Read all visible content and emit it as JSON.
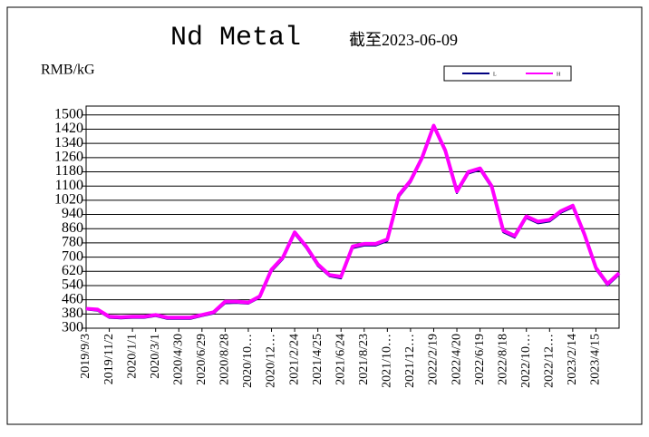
{
  "chart_data": {
    "type": "line",
    "title": "Nd Metal",
    "subtitle": "截至2023-06-09",
    "y_label": "RMB/kG",
    "categories": [
      "2019/9/3",
      null,
      "2019/11/2",
      null,
      "2020/1/1",
      null,
      "2020/3/1",
      null,
      "2020/4/30",
      null,
      "2020/6/29",
      null,
      "2020/8/28",
      null,
      "2020/10…",
      null,
      "2020/12…",
      null,
      "2021/2/24",
      null,
      "2021/4/25",
      null,
      "2021/6/24",
      null,
      "2021/8/23",
      null,
      "2021/10…",
      null,
      "2021/12…",
      null,
      "2022/2/19",
      null,
      "2022/4/20",
      null,
      "2022/6/19",
      null,
      "2022/8/18",
      null,
      "2022/10…",
      null,
      "2022/12…",
      null,
      "2023/2/14",
      null,
      "2023/4/15",
      null,
      null
    ],
    "series": [
      {
        "name": "L",
        "color": "#000080",
        "values": [
          405,
          398,
          358,
          355,
          358,
          358,
          368,
          352,
          352,
          352,
          368,
          382,
          440,
          442,
          438,
          472,
          620,
          690,
          830,
          750,
          650,
          592,
          580,
          750,
          765,
          765,
          790,
          1040,
          1120,
          1250,
          1430,
          1290,
          1060,
          1170,
          1190,
          1090,
          840,
          810,
          920,
          890,
          900,
          950,
          980,
          820,
          630,
          540,
          600
        ]
      },
      {
        "name": "H",
        "color": "#ff00ff",
        "values": [
          410,
          405,
          365,
          362,
          365,
          365,
          375,
          360,
          360,
          360,
          375,
          390,
          450,
          450,
          445,
          480,
          630,
          700,
          840,
          760,
          660,
          600,
          590,
          760,
          775,
          775,
          800,
          1050,
          1130,
          1260,
          1440,
          1300,
          1070,
          1180,
          1200,
          1100,
          850,
          820,
          930,
          900,
          910,
          960,
          990,
          830,
          640,
          550,
          610
        ]
      }
    ],
    "ylim": [
      300,
      1550
    ],
    "yticks": [
      300,
      380,
      460,
      540,
      620,
      700,
      780,
      860,
      940,
      1020,
      1100,
      1180,
      1260,
      1340,
      1420,
      1500
    ],
    "grid": true
  }
}
